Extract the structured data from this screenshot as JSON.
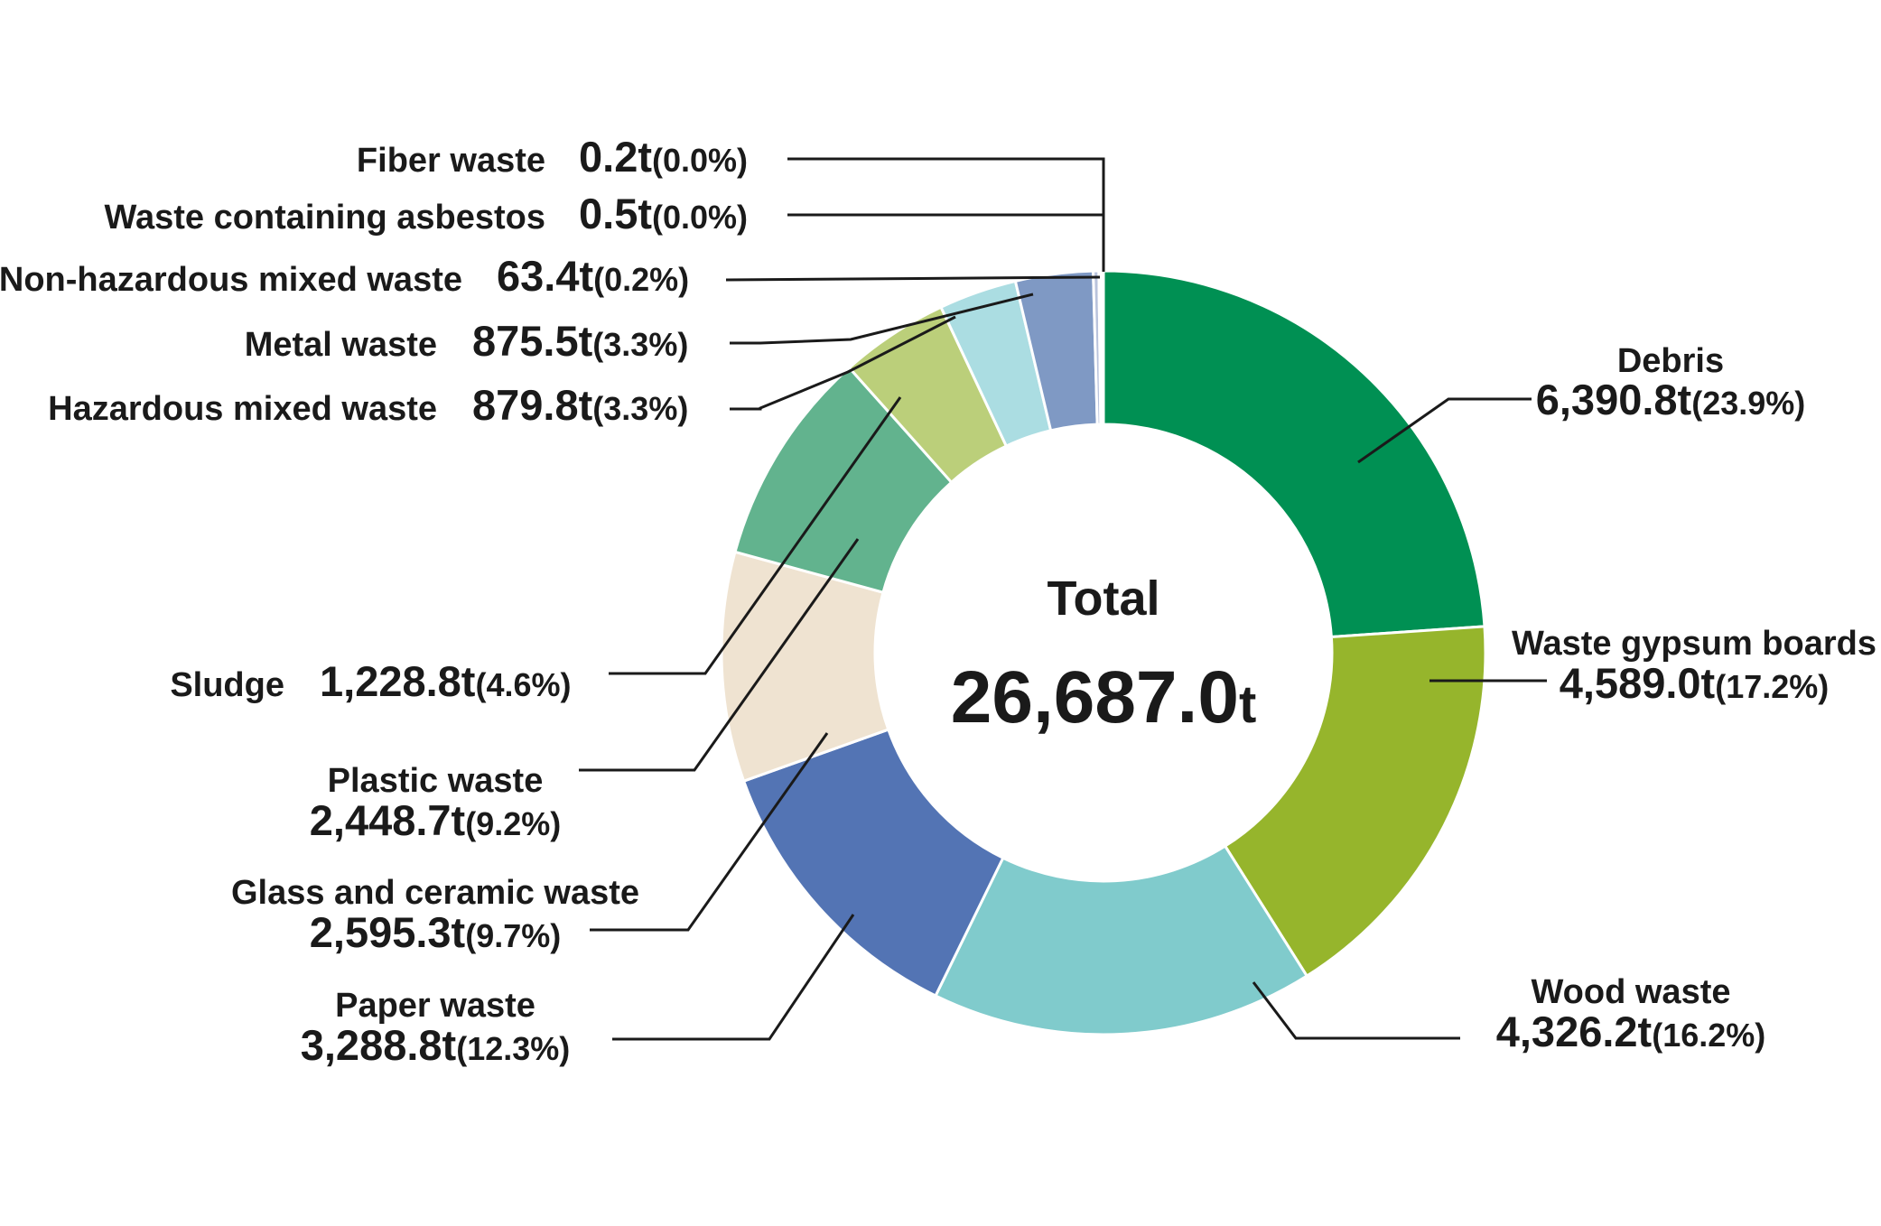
{
  "chart_data": {
    "type": "pie",
    "variant": "donut",
    "center": {
      "title": "Total",
      "value": "26,687.0",
      "unit": "t"
    },
    "unit": "t",
    "slices": [
      {
        "name": "Debris",
        "value": 6390.8,
        "value_label": "6,390.8t",
        "pct_label": "(23.9%)",
        "color": "#009053"
      },
      {
        "name": "Waste gypsum boards",
        "value": 4589.0,
        "value_label": "4,589.0t",
        "pct_label": "(17.2%)",
        "color": "#96b52c"
      },
      {
        "name": "Wood waste",
        "value": 4326.2,
        "value_label": "4,326.2t",
        "pct_label": "(16.2%)",
        "color": "#80cbcc"
      },
      {
        "name": "Paper waste",
        "value": 3288.8,
        "value_label": "3,288.8t",
        "pct_label": "(12.3%)",
        "color": "#5374b4"
      },
      {
        "name": "Glass and ceramic waste",
        "value": 2595.3,
        "value_label": "2,595.3t",
        "pct_label": "(9.7%)",
        "color": "#efe3d1"
      },
      {
        "name": "Plastic waste",
        "value": 2448.7,
        "value_label": "2,448.7t",
        "pct_label": "(9.2%)",
        "color": "#62b38e"
      },
      {
        "name": "Sludge",
        "value": 1228.8,
        "value_label": "1,228.8t",
        "pct_label": "(4.6%)",
        "color": "#bbcf7a"
      },
      {
        "name": "Hazardous mixed waste",
        "value": 879.8,
        "value_label": "879.8t",
        "pct_label": "(3.3%)",
        "color": "#abdde2"
      },
      {
        "name": "Metal waste",
        "value": 875.5,
        "value_label": "875.5t",
        "pct_label": "(3.3%)",
        "color": "#7f99c4"
      },
      {
        "name": "Non-hazardous mixed waste",
        "value": 63.4,
        "value_label": "63.4t",
        "pct_label": "(0.2%)",
        "color": "#b9c3dc"
      },
      {
        "name": "Waste containing asbestos",
        "value": 0.5,
        "value_label": "0.5t",
        "pct_label": "(0.0%)",
        "color": "#dde3ee"
      },
      {
        "name": "Fiber waste",
        "value": 0.2,
        "value_label": "0.2t",
        "pct_label": "(0.0%)",
        "color": "#dde3ee"
      }
    ]
  }
}
